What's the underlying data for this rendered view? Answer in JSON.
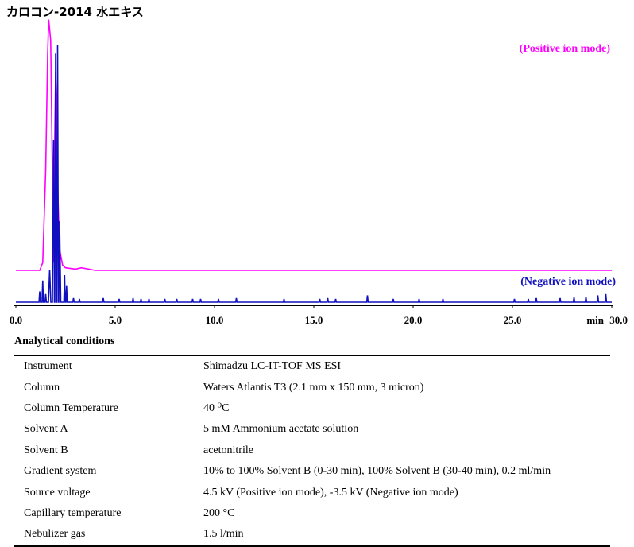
{
  "title": "カロコン-2014 水エキス",
  "chart_data": {
    "type": "line",
    "x_unit_label": "min",
    "xlim": [
      0,
      30
    ],
    "x_ticks": [
      "0.0",
      "5.0",
      "10.0",
      "15.0",
      "20.0",
      "25.0",
      "30.0"
    ],
    "series": [
      {
        "name": "(Positive ion mode)",
        "color": "#ff00ff",
        "baseline": 0.02,
        "points": [
          [
            0,
            0.02
          ],
          [
            1.2,
            0.02
          ],
          [
            1.35,
            0.05
          ],
          [
            1.5,
            0.4
          ],
          [
            1.6,
            0.85
          ],
          [
            1.65,
            0.98
          ],
          [
            1.75,
            0.9
          ],
          [
            1.85,
            0.3
          ],
          [
            1.9,
            0.05
          ],
          [
            1.95,
            0.5
          ],
          [
            2.0,
            0.78
          ],
          [
            2.05,
            0.62
          ],
          [
            2.1,
            0.35
          ],
          [
            2.2,
            0.1
          ],
          [
            2.35,
            0.04
          ],
          [
            2.5,
            0.03
          ],
          [
            3.0,
            0.025
          ],
          [
            3.3,
            0.03
          ],
          [
            4.0,
            0.02
          ],
          [
            30,
            0.02
          ]
        ]
      },
      {
        "name": "(Negative ion mode)",
        "color": "#1010c0",
        "baseline": 0.0,
        "peaks": [
          [
            1.2,
            0.04
          ],
          [
            1.35,
            0.08
          ],
          [
            1.5,
            0.03
          ],
          [
            1.7,
            0.12
          ],
          [
            1.9,
            0.6
          ],
          [
            2.0,
            0.92
          ],
          [
            2.1,
            0.95
          ],
          [
            2.2,
            0.3
          ],
          [
            2.45,
            0.1
          ],
          [
            2.55,
            0.06
          ],
          [
            2.9,
            0.015
          ],
          [
            3.2,
            0.012
          ],
          [
            4.4,
            0.015
          ],
          [
            5.2,
            0.012
          ],
          [
            5.9,
            0.015
          ],
          [
            6.3,
            0.012
          ],
          [
            6.7,
            0.012
          ],
          [
            7.5,
            0.012
          ],
          [
            8.1,
            0.012
          ],
          [
            8.9,
            0.012
          ],
          [
            9.3,
            0.012
          ],
          [
            10.2,
            0.012
          ],
          [
            11.1,
            0.015
          ],
          [
            13.5,
            0.012
          ],
          [
            15.3,
            0.012
          ],
          [
            15.7,
            0.015
          ],
          [
            16.1,
            0.012
          ],
          [
            17.7,
            0.025
          ],
          [
            19.0,
            0.012
          ],
          [
            20.3,
            0.012
          ],
          [
            21.5,
            0.012
          ],
          [
            25.1,
            0.012
          ],
          [
            25.8,
            0.012
          ],
          [
            26.2,
            0.015
          ],
          [
            27.4,
            0.015
          ],
          [
            28.1,
            0.018
          ],
          [
            28.7,
            0.02
          ],
          [
            29.3,
            0.025
          ],
          [
            29.7,
            0.03
          ]
        ]
      }
    ]
  },
  "conditions": {
    "heading": "Analytical conditions",
    "rows": [
      {
        "label": "Instrument",
        "value": "Shimadzu LC-IT-TOF MS ESI"
      },
      {
        "label": "Column",
        "value": "Waters Atlantis T3 (2.1 mm x 150 mm, 3 micron)"
      },
      {
        "label": "Column Temperature",
        "value": "40 ⁰C"
      },
      {
        "label": "Solvent A",
        "value": "5 mM Ammonium acetate solution"
      },
      {
        "label": "Solvent B",
        "value": "acetonitrile"
      },
      {
        "label": "Gradient system",
        "value": "10% to 100% Solvent B (0-30 min), 100% Solvent B (30-40 min), 0.2 ml/min"
      },
      {
        "label": "Source voltage",
        "value": "4.5 kV (Positive ion mode), -3.5 kV (Negative ion mode)"
      },
      {
        "label": "Capillary temperature",
        "value": "200 °C"
      },
      {
        "label": "Nebulizer gas",
        "value": "1.5 l/min"
      }
    ]
  }
}
